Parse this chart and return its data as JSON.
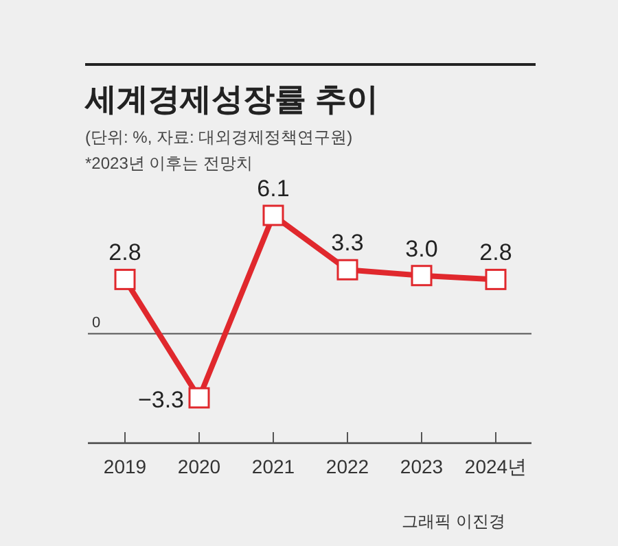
{
  "chart_data": {
    "type": "line",
    "title": "세계경제성장률 추이",
    "subtitle": "(단위: %, 자료: 대외경제정책연구원)",
    "annotations": [
      "*2023년 이후는 전망치",
      "그래픽 이진경"
    ],
    "categories": [
      "2019",
      "2020",
      "2021",
      "2022",
      "2023",
      "2024년"
    ],
    "series": [
      {
        "color": "#e0282d",
        "values": [
          2.8,
          -3.3,
          6.1,
          3.3,
          3.0,
          2.8
        ],
        "value_labels": [
          "2.8",
          "−3.3",
          "6.1",
          "3.3",
          "3.0",
          "2.8"
        ]
      }
    ],
    "ref_lines": [
      {
        "axis": "y",
        "value": 0,
        "label": "0"
      }
    ],
    "marker": "square",
    "line_style": "solid"
  }
}
